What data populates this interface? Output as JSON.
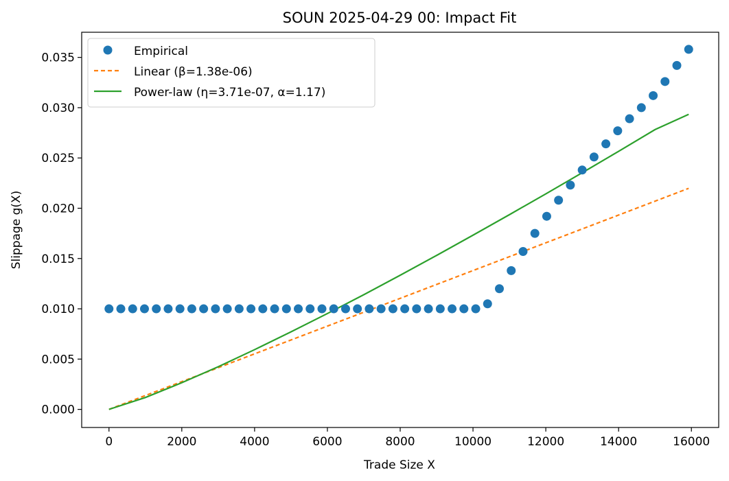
{
  "chart_data": {
    "type": "scatter",
    "title": "SOUN 2025-04-29 00: Impact Fit",
    "xlabel": "Trade Size X",
    "ylabel": "Slippage g(X)",
    "xlim": [
      -750,
      16750
    ],
    "ylim": [
      -0.0018,
      0.0375
    ],
    "xticks": [
      0,
      2000,
      4000,
      6000,
      8000,
      10000,
      12000,
      14000,
      16000
    ],
    "xtick_labels": [
      "0",
      "2000",
      "4000",
      "6000",
      "8000",
      "10000",
      "12000",
      "14000",
      "16000"
    ],
    "yticks": [
      0.0,
      0.005,
      0.01,
      0.015,
      0.02,
      0.025,
      0.03,
      0.035
    ],
    "ytick_labels": [
      "0.000",
      "0.005",
      "0.010",
      "0.015",
      "0.020",
      "0.025",
      "0.030",
      "0.035"
    ],
    "grid": false,
    "legend_position": "top-left",
    "series": [
      {
        "name": "Empirical",
        "kind": "markers",
        "color": "#1f77b4",
        "x": [
          0,
          325,
          650,
          975,
          1300,
          1625,
          1950,
          2275,
          2600,
          2925,
          3250,
          3575,
          3900,
          4225,
          4550,
          4875,
          5200,
          5525,
          5850,
          6175,
          6500,
          6825,
          7150,
          7475,
          7800,
          8125,
          8450,
          8775,
          9100,
          9425,
          9750,
          10075,
          10400,
          10725,
          11050,
          11375,
          11700,
          12025,
          12350,
          12675,
          13000,
          13325,
          13650,
          13975,
          14300,
          14625,
          14950,
          15275,
          15600,
          15925
        ],
        "y": [
          0.01,
          0.01,
          0.01,
          0.01,
          0.01,
          0.01,
          0.01,
          0.01,
          0.01,
          0.01,
          0.01,
          0.01,
          0.01,
          0.01,
          0.01,
          0.01,
          0.01,
          0.01,
          0.01,
          0.01,
          0.01,
          0.01,
          0.01,
          0.01,
          0.01,
          0.01,
          0.01,
          0.01,
          0.01,
          0.01,
          0.01,
          0.01,
          0.0105,
          0.012,
          0.0138,
          0.0157,
          0.0175,
          0.0192,
          0.0208,
          0.0223,
          0.0238,
          0.0251,
          0.0264,
          0.0277,
          0.0289,
          0.03,
          0.0312,
          0.0326,
          0.0342,
          0.0358
        ]
      },
      {
        "name": "Linear (β=1.38e-06)",
        "kind": "dashed-line",
        "color": "#ff7f0e",
        "x": [
          0,
          15925
        ],
        "y": [
          0.0,
          0.02198
        ]
      },
      {
        "name": "Power-law (η=3.71e-07, α=1.17)",
        "kind": "line",
        "color": "#2ca02c",
        "x": [
          0,
          1000,
          2000,
          3000,
          4000,
          5000,
          6000,
          7000,
          8000,
          9000,
          10000,
          11000,
          12000,
          13000,
          14000,
          15000,
          15925
        ],
        "y": [
          0.0,
          0.00118,
          0.00265,
          0.00424,
          0.00594,
          0.00771,
          0.00953,
          0.0114,
          0.01334,
          0.01531,
          0.01732,
          0.01936,
          0.02143,
          0.02353,
          0.02566,
          0.02782,
          0.02934
        ]
      }
    ]
  }
}
